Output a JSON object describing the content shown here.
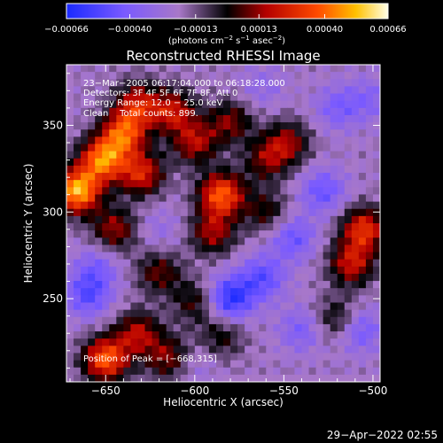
{
  "chart_data": {
    "type": "heatmap",
    "title": "Reconstructed RHESSI Image",
    "xlabel": "Heliocentric X (arcsec)",
    "ylabel": "Heliocentric Y (arcsec)",
    "xlim": [
      -672,
      -496
    ],
    "ylim": [
      202,
      385
    ],
    "x_ticks": [
      -650,
      -600,
      -550,
      -500
    ],
    "x_tick_labels": [
      "−650",
      "−600",
      "−550",
      "−500"
    ],
    "y_ticks": [
      250,
      300,
      350
    ],
    "y_tick_labels": [
      "250",
      "300",
      "350"
    ],
    "colorbar": {
      "range": [
        -0.00066,
        0.00066
      ],
      "ticks": [
        -0.00066,
        -0.0004,
        -0.00013,
        0.00013,
        0.0004,
        0.00066
      ],
      "tick_labels": [
        "−0.00066",
        "−0.00040",
        "−0.00013",
        "0.00013",
        "0.00040",
        "0.00066"
      ],
      "unit_parts": [
        "(photons cm",
        "−2",
        " s",
        "−1",
        " asec",
        "−2",
        ")"
      ]
    },
    "info_lines": [
      "23−Mar−2005 06:17:04.000 to 06:18:28.000",
      "Detectors: 3F 4F 5F 6F 7F 8F, Att 0",
      "Energy Range: 12.0 − 25.0 keV",
      "Clean    Total counts: 899."
    ],
    "peak_label": "Position of Peak = [−668,315]",
    "peak": [
      -668,
      315
    ],
    "blobs": [
      {
        "x": -666,
        "y": 312,
        "v": 0.00066
      },
      {
        "x": -652,
        "y": 330,
        "v": 0.00055
      },
      {
        "x": -640,
        "y": 345,
        "v": 0.00048
      },
      {
        "x": -632,
        "y": 362,
        "v": 0.00035
      },
      {
        "x": -612,
        "y": 358,
        "v": 0.00033
      },
      {
        "x": -630,
        "y": 322,
        "v": 0.00038
      },
      {
        "x": -645,
        "y": 290,
        "v": 0.00028
      },
      {
        "x": -600,
        "y": 340,
        "v": 0.0003
      },
      {
        "x": -585,
        "y": 310,
        "v": 0.00052
      },
      {
        "x": -590,
        "y": 288,
        "v": 0.00028
      },
      {
        "x": -580,
        "y": 352,
        "v": 0.00024
      },
      {
        "x": -560,
        "y": 330,
        "v": 0.00022
      },
      {
        "x": -548,
        "y": 340,
        "v": 0.00026
      },
      {
        "x": -620,
        "y": 265,
        "v": 0.00022
      },
      {
        "x": -600,
        "y": 248,
        "v": 0.00018
      },
      {
        "x": -560,
        "y": 300,
        "v": 0.00018
      },
      {
        "x": -505,
        "y": 290,
        "v": 0.00042
      },
      {
        "x": -512,
        "y": 270,
        "v": 0.00034
      },
      {
        "x": -520,
        "y": 238,
        "v": 0.0002
      },
      {
        "x": -650,
        "y": 215,
        "v": 0.00052
      },
      {
        "x": -632,
        "y": 230,
        "v": 0.0003
      },
      {
        "x": -615,
        "y": 216,
        "v": 0.00026
      },
      {
        "x": -585,
        "y": 228,
        "v": 0.00016
      },
      {
        "x": -660,
        "y": 252,
        "v": -0.00035
      },
      {
        "x": -655,
        "y": 268,
        "v": -0.00025
      },
      {
        "x": -580,
        "y": 250,
        "v": -0.00048
      },
      {
        "x": -562,
        "y": 262,
        "v": -0.00035
      },
      {
        "x": -545,
        "y": 285,
        "v": -0.00032
      },
      {
        "x": -528,
        "y": 312,
        "v": -0.00032
      },
      {
        "x": -540,
        "y": 232,
        "v": -0.00026
      },
      {
        "x": -508,
        "y": 232,
        "v": -0.00032
      },
      {
        "x": -520,
        "y": 360,
        "v": -0.00026
      },
      {
        "x": -562,
        "y": 372,
        "v": -0.00018
      },
      {
        "x": -620,
        "y": 290,
        "v": -0.00016
      },
      {
        "x": -600,
        "y": 212,
        "v": -0.00016
      },
      {
        "x": -502,
        "y": 365,
        "v": -0.00022
      }
    ]
  },
  "footer": {
    "timestamp": "29−Apr−2022 02:55"
  }
}
